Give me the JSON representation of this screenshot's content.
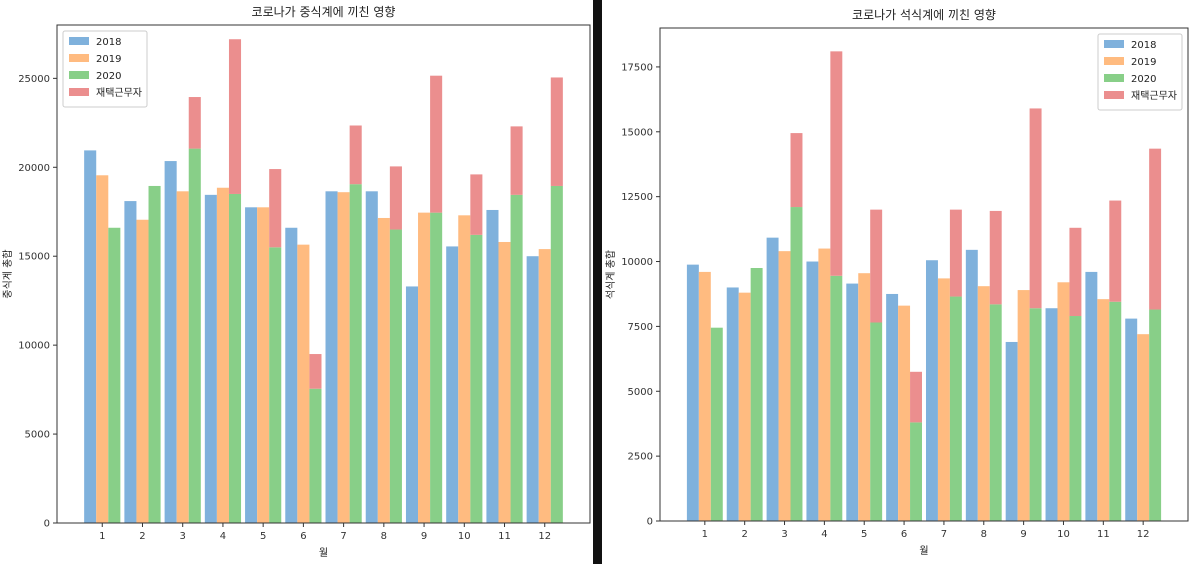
{
  "chart_data": [
    {
      "type": "bar",
      "title": "코로나가 중식계에 끼친 영향",
      "xlabel": "월",
      "ylabel": "중식계 총합",
      "categories": [
        "1",
        "2",
        "3",
        "4",
        "5",
        "6",
        "7",
        "8",
        "9",
        "10",
        "11",
        "12"
      ],
      "ylim": [
        0,
        28000
      ],
      "yticks": [
        0,
        5000,
        10000,
        15000,
        20000,
        25000
      ],
      "series": [
        {
          "name": "2018",
          "color": "#7fb1dc",
          "values": [
            20950,
            18100,
            20350,
            18450,
            17750,
            16600,
            18650,
            18650,
            13300,
            15550,
            17600,
            15000
          ]
        },
        {
          "name": "2019",
          "color": "#ffbb80",
          "values": [
            19550,
            17050,
            18650,
            18850,
            17750,
            15650,
            18600,
            17150,
            17450,
            17300,
            15800,
            15400
          ]
        },
        {
          "name": "2020",
          "color": "#88cf88",
          "values": [
            16600,
            18950,
            21050,
            18500,
            15500,
            7550,
            19050,
            16500,
            17450,
            16200,
            18450,
            18950
          ]
        },
        {
          "name": "재택근무자",
          "color": "#eb8e8e",
          "stacked_on": "2020",
          "values": [
            0,
            0,
            2900,
            8700,
            4400,
            1950,
            3300,
            3550,
            7700,
            3400,
            3850,
            6100
          ]
        }
      ],
      "legend": "upper-left"
    },
    {
      "type": "bar",
      "title": "코로나가 석식계에 끼친 영향",
      "xlabel": "월",
      "ylabel": "석식계 총합",
      "categories": [
        "1",
        "2",
        "3",
        "4",
        "5",
        "6",
        "7",
        "8",
        "9",
        "10",
        "11",
        "12"
      ],
      "ylim": [
        0,
        19000
      ],
      "yticks": [
        0,
        2500,
        5000,
        7500,
        10000,
        12500,
        15000,
        17500
      ],
      "series": [
        {
          "name": "2018",
          "color": "#7fb1dc",
          "values": [
            9880,
            9000,
            10920,
            10000,
            9150,
            8750,
            10050,
            10450,
            6900,
            8200,
            9600,
            7800
          ]
        },
        {
          "name": "2019",
          "color": "#ffbb80",
          "values": [
            9600,
            8800,
            10400,
            10500,
            9550,
            8300,
            9350,
            9050,
            8900,
            9200,
            8550,
            7200
          ]
        },
        {
          "name": "2020",
          "color": "#88cf88",
          "values": [
            7450,
            9750,
            12100,
            9450,
            7650,
            3800,
            8650,
            8350,
            8200,
            7900,
            8450,
            8150
          ]
        },
        {
          "name": "재택근무자",
          "color": "#eb8e8e",
          "stacked_on": "2020",
          "values": [
            0,
            0,
            2850,
            8650,
            4350,
            1950,
            3350,
            3600,
            7700,
            3400,
            3900,
            6200
          ]
        }
      ],
      "legend": "upper-right"
    }
  ]
}
